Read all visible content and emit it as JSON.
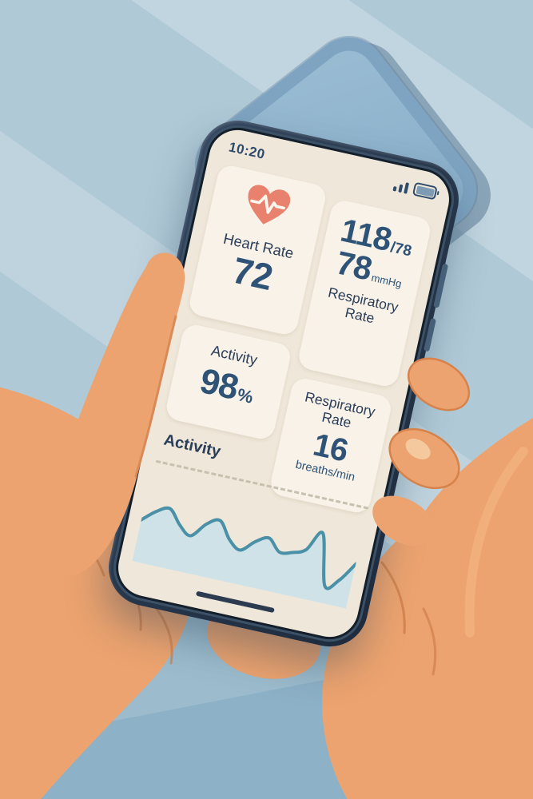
{
  "scene": {
    "background_color": "#b0c9d7",
    "tablet_color": "#7ea4c2",
    "skin_color": "#eca36f",
    "skin_shade_color": "#d07e49",
    "nail_color": "#f5c99e",
    "phone_frame_color": "#26364a",
    "screen_color": "#efe7d9",
    "card_color": "#f8f2e8",
    "text_navy": "#2b3e58",
    "number_blue": "#2f5377",
    "heart_coral": "#e8816d",
    "wave_stroke": "#4a90a6",
    "wave_fill": "#cfe2e7"
  },
  "phone": {
    "status_bar": {
      "time": "10:20",
      "icons": [
        "signal-bars-icon",
        "battery-icon"
      ]
    },
    "cards": {
      "heart_rate": {
        "icon": "heart-ecg-icon",
        "label": "Heart Rate",
        "value": "72"
      },
      "blood_pressure": {
        "primary_value": "118",
        "primary_suffix": "/78",
        "secondary_value": "78",
        "secondary_unit": "mmHg",
        "caption": "Respiratory Rate"
      },
      "activity": {
        "label": "Activity",
        "value": "98",
        "unit": "%"
      },
      "respiratory_rate": {
        "label": "Respiratory Rate",
        "value": "16",
        "unit": "breaths/min"
      }
    },
    "activity_panel": {
      "title": "Activity"
    }
  },
  "chart_data": {
    "type": "area",
    "title": "Activity",
    "x_labels": [],
    "values": [
      46,
      60,
      67,
      50,
      40,
      58,
      66,
      46,
      36,
      50,
      58,
      44,
      47,
      54,
      78,
      16,
      26,
      50
    ],
    "ylim": [
      0,
      100
    ],
    "grid": false,
    "legend": "none",
    "reference_line": {
      "style": "dashed",
      "position": "top"
    }
  }
}
